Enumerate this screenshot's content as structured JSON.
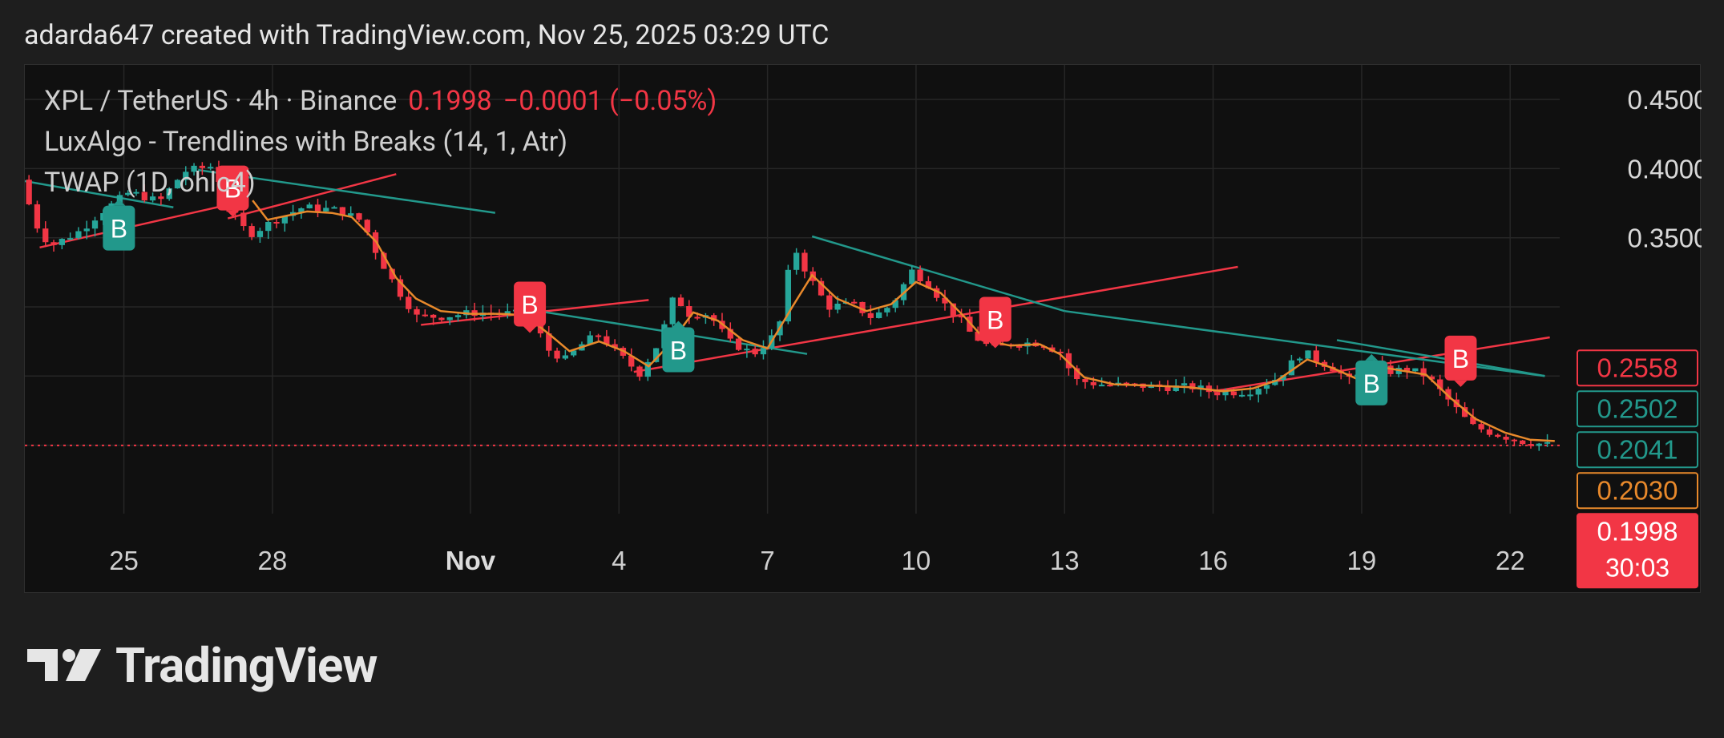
{
  "header": {
    "attribution": "adarda647 created with TradingView.com, Nov 25, 2025 03:29 UTC"
  },
  "legend": {
    "symbol": "XPL / TetherUS · 4h · Binance",
    "price": "0.1998",
    "change": "−0.0001 (−0.05%)",
    "indicator_1": "LuxAlgo - Trendlines with Breaks (14, 1, Atr)",
    "indicator_2": "TWAP (1D, ohlc4)"
  },
  "brand": {
    "name": "TradingView",
    "logo_icon": "tradingview-logo-icon"
  },
  "colors": {
    "up": "#26a69a",
    "down": "#f23645",
    "twap": "#e8892b",
    "trend_up": "#f23645",
    "trend_down": "#22988b",
    "background": "#101010",
    "grid": "#262626"
  },
  "chart_data": {
    "type": "candlestick",
    "symbol": "XPL / TetherUS",
    "timeframe": "4h",
    "exchange": "Binance",
    "last_price": 0.1998,
    "x_ticks": [
      "25",
      "28",
      "Nov",
      "4",
      "7",
      "10",
      "13",
      "16",
      "19",
      "22"
    ],
    "x_tick_days": [
      25,
      28,
      32,
      35,
      38,
      41,
      44,
      47,
      50,
      53
    ],
    "x_range_days": [
      23.0,
      54.0
    ],
    "y_ticks": [
      "0.4500",
      "0.4000",
      "0.3500"
    ],
    "ylim": [
      0.1505,
      0.475
    ],
    "price_labels": [
      {
        "text": "0.2558",
        "price": 0.2558,
        "style": "outline",
        "color": "#f23645"
      },
      {
        "text": "0.2502",
        "price": 0.2502,
        "style": "outline",
        "color": "#22988b"
      },
      {
        "text": "0.2041",
        "price": 0.2041,
        "style": "outline",
        "color": "#22988b"
      },
      {
        "text": "0.2030",
        "price": 0.203,
        "style": "outline",
        "color": "#e8892b"
      },
      {
        "text": "0.1998",
        "price": 0.1998,
        "style": "filled",
        "color": "#f23645",
        "countdown": "30:03"
      }
    ],
    "price_anchors": [
      [
        23.0,
        0.392
      ],
      [
        23.3,
        0.36
      ],
      [
        23.6,
        0.344
      ],
      [
        24.2,
        0.355
      ],
      [
        24.6,
        0.368
      ],
      [
        25.2,
        0.383
      ],
      [
        25.8,
        0.376
      ],
      [
        26.3,
        0.398
      ],
      [
        26.9,
        0.402
      ],
      [
        27.2,
        0.372
      ],
      [
        27.6,
        0.352
      ],
      [
        28.2,
        0.364
      ],
      [
        28.7,
        0.372
      ],
      [
        29.4,
        0.37
      ],
      [
        29.9,
        0.362
      ],
      [
        30.2,
        0.338
      ],
      [
        30.6,
        0.313
      ],
      [
        31.0,
        0.293
      ],
      [
        31.5,
        0.293
      ],
      [
        32.2,
        0.296
      ],
      [
        33.0,
        0.295
      ],
      [
        33.3,
        0.298
      ],
      [
        33.6,
        0.27
      ],
      [
        34.0,
        0.262
      ],
      [
        34.4,
        0.275
      ],
      [
        34.7,
        0.28
      ],
      [
        35.0,
        0.268
      ],
      [
        35.5,
        0.252
      ],
      [
        35.9,
        0.275
      ],
      [
        36.2,
        0.308
      ],
      [
        36.5,
        0.295
      ],
      [
        36.9,
        0.295
      ],
      [
        37.3,
        0.275
      ],
      [
        37.8,
        0.266
      ],
      [
        38.3,
        0.282
      ],
      [
        38.6,
        0.345
      ],
      [
        38.9,
        0.323
      ],
      [
        39.3,
        0.3
      ],
      [
        39.8,
        0.302
      ],
      [
        40.2,
        0.292
      ],
      [
        40.6,
        0.302
      ],
      [
        41.0,
        0.326
      ],
      [
        41.3,
        0.318
      ],
      [
        41.7,
        0.3
      ],
      [
        42.0,
        0.29
      ],
      [
        42.2,
        0.28
      ],
      [
        42.6,
        0.27
      ],
      [
        43.1,
        0.274
      ],
      [
        43.6,
        0.274
      ],
      [
        44.0,
        0.267
      ],
      [
        44.3,
        0.247
      ],
      [
        44.8,
        0.244
      ],
      [
        45.5,
        0.243
      ],
      [
        46.2,
        0.242
      ],
      [
        46.7,
        0.242
      ],
      [
        47.1,
        0.238
      ],
      [
        47.8,
        0.239
      ],
      [
        48.4,
        0.249
      ],
      [
        48.9,
        0.268
      ],
      [
        49.1,
        0.263
      ],
      [
        49.5,
        0.256
      ],
      [
        49.9,
        0.245
      ],
      [
        50.2,
        0.26
      ],
      [
        50.6,
        0.253
      ],
      [
        51.0,
        0.255
      ],
      [
        51.4,
        0.25
      ],
      [
        51.9,
        0.23
      ],
      [
        52.3,
        0.214
      ],
      [
        52.8,
        0.208
      ],
      [
        53.3,
        0.203
      ],
      [
        53.9,
        0.1998
      ]
    ],
    "series": [
      {
        "name": "TWAP (1D, ohlc4)",
        "type": "line",
        "color": "#e8892b",
        "points": [
          [
            27.6,
            0.377
          ],
          [
            27.9,
            0.363
          ],
          [
            28.3,
            0.366
          ],
          [
            28.7,
            0.369
          ],
          [
            29.2,
            0.368
          ],
          [
            29.6,
            0.365
          ],
          [
            30.1,
            0.347
          ],
          [
            30.5,
            0.321
          ],
          [
            30.9,
            0.306
          ],
          [
            31.4,
            0.297
          ],
          [
            32.0,
            0.295
          ],
          [
            32.6,
            0.295
          ],
          [
            33.1,
            0.294
          ],
          [
            33.6,
            0.28
          ],
          [
            34.0,
            0.268
          ],
          [
            34.6,
            0.275
          ],
          [
            35.1,
            0.268
          ],
          [
            35.6,
            0.257
          ],
          [
            36.0,
            0.272
          ],
          [
            36.5,
            0.296
          ],
          [
            37.0,
            0.29
          ],
          [
            37.5,
            0.276
          ],
          [
            38.0,
            0.27
          ],
          [
            38.5,
            0.3
          ],
          [
            38.9,
            0.323
          ],
          [
            39.4,
            0.306
          ],
          [
            40.0,
            0.297
          ],
          [
            40.5,
            0.302
          ],
          [
            41.0,
            0.318
          ],
          [
            41.5,
            0.31
          ],
          [
            42.0,
            0.292
          ],
          [
            42.4,
            0.276
          ],
          [
            42.9,
            0.272
          ],
          [
            43.5,
            0.273
          ],
          [
            43.9,
            0.266
          ],
          [
            44.4,
            0.249
          ],
          [
            45.0,
            0.244
          ],
          [
            45.8,
            0.243
          ],
          [
            46.5,
            0.242
          ],
          [
            47.2,
            0.239
          ],
          [
            47.8,
            0.241
          ],
          [
            48.3,
            0.247
          ],
          [
            48.9,
            0.262
          ],
          [
            49.4,
            0.256
          ],
          [
            49.9,
            0.248
          ],
          [
            50.3,
            0.257
          ],
          [
            50.8,
            0.254
          ],
          [
            51.3,
            0.251
          ],
          [
            51.8,
            0.234
          ],
          [
            52.3,
            0.219
          ],
          [
            52.9,
            0.209
          ],
          [
            53.4,
            0.204
          ],
          [
            53.9,
            0.203
          ]
        ]
      }
    ],
    "trendlines": [
      {
        "kind": "support",
        "color": "#f23645",
        "from": [
          23.3,
          0.343
        ],
        "to": [
          27.0,
          0.373
        ]
      },
      {
        "kind": "support",
        "color": "#f23645",
        "from": [
          27.1,
          0.364
        ],
        "to": [
          30.5,
          0.396
        ]
      },
      {
        "kind": "support",
        "color": "#f23645",
        "from": [
          31.0,
          0.287
        ],
        "to": [
          35.6,
          0.305
        ]
      },
      {
        "kind": "support",
        "color": "#f23645",
        "from": [
          35.3,
          0.253
        ],
        "to": [
          47.5,
          0.329
        ]
      },
      {
        "kind": "support",
        "color": "#f23645",
        "from": [
          47.0,
          0.239
        ],
        "to": [
          53.8,
          0.278
        ]
      },
      {
        "kind": "resistance",
        "color": "#22988b",
        "from": [
          23.0,
          0.391
        ],
        "to": [
          26.0,
          0.372
        ]
      },
      {
        "kind": "resistance",
        "color": "#22988b",
        "from": [
          26.5,
          0.399
        ],
        "to": [
          32.5,
          0.368
        ]
      },
      {
        "kind": "resistance",
        "color": "#22988b",
        "from": [
          33.2,
          0.298
        ],
        "to": [
          38.8,
          0.266
        ]
      },
      {
        "kind": "resistance",
        "color": "#22988b",
        "from": [
          38.9,
          0.351
        ],
        "to": [
          44.0,
          0.297
        ]
      },
      {
        "kind": "resistance",
        "color": "#22988b",
        "from": [
          44.0,
          0.297
        ],
        "to": [
          53.7,
          0.25
        ]
      },
      {
        "kind": "resistance",
        "color": "#22988b",
        "from": [
          49.5,
          0.276
        ],
        "to": [
          53.7,
          0.25
        ]
      }
    ],
    "break_labels": [
      {
        "text": "B",
        "type": "bearish",
        "color": "#f23645",
        "day": 27.2,
        "price": 0.386,
        "dir": "up"
      },
      {
        "text": "B",
        "type": "bullish",
        "color": "#22988b",
        "day": 24.9,
        "price": 0.357,
        "dir": "down"
      },
      {
        "text": "B",
        "type": "bearish",
        "color": "#f23645",
        "day": 33.2,
        "price": 0.302,
        "dir": "up"
      },
      {
        "text": "B",
        "type": "bullish",
        "color": "#22988b",
        "day": 36.2,
        "price": 0.269,
        "dir": "down"
      },
      {
        "text": "B",
        "type": "bearish",
        "color": "#f23645",
        "day": 42.6,
        "price": 0.291,
        "dir": "up"
      },
      {
        "text": "B",
        "type": "bullish",
        "color": "#22988b",
        "day": 50.2,
        "price": 0.245,
        "dir": "down"
      },
      {
        "text": "B",
        "type": "bearish",
        "color": "#f23645",
        "day": 52.0,
        "price": 0.263,
        "dir": "up"
      }
    ]
  }
}
